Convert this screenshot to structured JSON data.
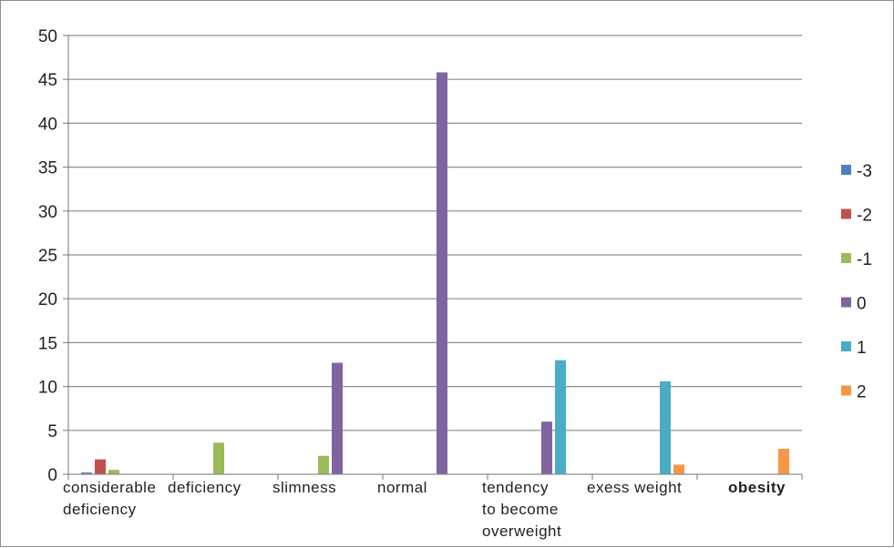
{
  "chart_data": {
    "type": "bar",
    "title": "",
    "xlabel": "",
    "ylabel": "",
    "ylim": [
      0,
      50
    ],
    "yticks": [
      0,
      5,
      10,
      15,
      20,
      25,
      30,
      35,
      40,
      45,
      50
    ],
    "grid": true,
    "legend_position": "right",
    "categories": [
      {
        "lines": [
          "considerable",
          "deficiency"
        ],
        "bold": false
      },
      {
        "lines": [
          "deficiency"
        ],
        "bold": false
      },
      {
        "lines": [
          "slimness"
        ],
        "bold": false
      },
      {
        "lines": [
          "normal"
        ],
        "bold": false
      },
      {
        "lines": [
          "tendency",
          "to become",
          "overweight"
        ],
        "bold": false
      },
      {
        "lines": [
          "exess weight"
        ],
        "bold": false
      },
      {
        "lines": [
          "obesity"
        ],
        "bold": true
      }
    ],
    "series": [
      {
        "name": "-3",
        "color": "#4f81bd",
        "values": [
          0.2,
          0,
          0,
          0,
          0,
          0,
          0
        ]
      },
      {
        "name": "-2",
        "color": "#c0504d",
        "values": [
          1.7,
          0,
          0,
          0,
          0,
          0,
          0
        ]
      },
      {
        "name": "-1",
        "color": "#9bbb59",
        "values": [
          0.5,
          3.6,
          2.1,
          0,
          0,
          0,
          0
        ]
      },
      {
        "name": "0",
        "color": "#8064a2",
        "values": [
          0,
          0,
          12.7,
          45.8,
          6.0,
          0,
          0
        ]
      },
      {
        "name": "1",
        "color": "#4bacc6",
        "values": [
          0,
          0,
          0,
          0,
          13.0,
          10.6,
          0
        ]
      },
      {
        "name": "2",
        "color": "#f79646",
        "values": [
          0,
          0,
          0,
          0,
          0,
          1.1,
          2.9
        ]
      }
    ]
  }
}
